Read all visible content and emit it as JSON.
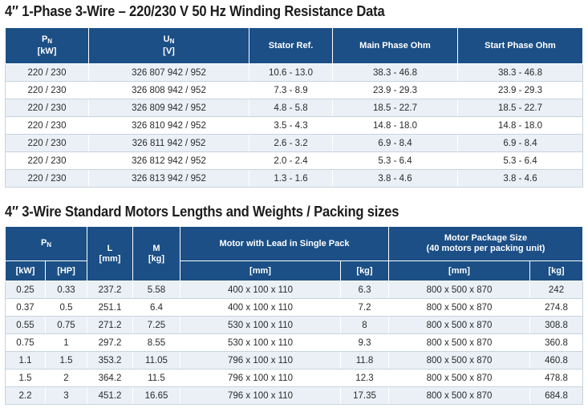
{
  "winding": {
    "title": "4″ 1-Phase 3-Wire – 220/230 V 50 Hz Winding Resistance Data",
    "headers": {
      "pn_main": "P",
      "pn_sub": "N",
      "pn_unit": "[kW]",
      "un_main": "U",
      "un_sub": "N",
      "un_unit": "[V]",
      "stator": "Stator Ref.",
      "main_phase": "Main Phase Ohm",
      "start_phase": "Start Phase Ohm"
    },
    "rows": [
      [
        "220 / 230",
        "326 807 942 / 952",
        "10.6 - 13.0",
        "38.3 - 46.8",
        "38.3 - 46.8"
      ],
      [
        "220 / 230",
        "326 808 942 / 952",
        "7.3 - 8.9",
        "23.9 - 29.3",
        "23.9 - 29.3"
      ],
      [
        "220 / 230",
        "326 809 942 / 952",
        "4.8 - 5.8",
        "18.5 - 22.7",
        "18.5 - 22.7"
      ],
      [
        "220 / 230",
        "326 810 942 / 952",
        "3.5 - 4.3",
        "14.8 - 18.0",
        "14.8 - 18.0"
      ],
      [
        "220 / 230",
        "326 811 942 / 952",
        "2.6 - 3.2",
        "6.9 - 8.4",
        "6.9 - 8.4"
      ],
      [
        "220 / 230",
        "326 812 942 / 952",
        "2.0 - 2.4",
        "5.3 - 6.4",
        "5.3 - 6.4"
      ],
      [
        "220 / 230",
        "326 813 942 / 952",
        "1.3 - 1.6",
        "3.8 - 4.6",
        "3.8 - 4.6"
      ]
    ]
  },
  "motors": {
    "title": "4″ 3-Wire Standard Motors Lengths and Weights / Packing sizes",
    "headers": {
      "pn_main": "P",
      "pn_sub": "N",
      "l_main": "L",
      "l_unit": "[mm]",
      "m_main": "M",
      "m_unit": "[kg]",
      "single_pack": "Motor with Lead in Single Pack",
      "package_line1": "Motor Package Size",
      "package_line2": "(40 motors per packing unit)",
      "kw": "[kW]",
      "hp": "[HP]",
      "mm1": "[mm]",
      "kg1": "[kg]",
      "mm2": "[mm]",
      "kg2": "[kg]"
    },
    "rows": [
      [
        "0.25",
        "0.33",
        "237.2",
        "5.58",
        "400 x 100 x 110",
        "6.3",
        "800 x 500 x 870",
        "242"
      ],
      [
        "0.37",
        "0.5",
        "251.1",
        "6.4",
        "400 x 100 x 110",
        "7.2",
        "800 x 500 x 870",
        "274.8"
      ],
      [
        "0.55",
        "0.75",
        "271.2",
        "7.25",
        "530 x 100 x 110",
        "8",
        "800 x 500 x 870",
        "308.8"
      ],
      [
        "0.75",
        "1",
        "297.2",
        "8.55",
        "530 x 100 x 110",
        "9.3",
        "800 x 500 x 870",
        "360.8"
      ],
      [
        "1.1",
        "1.5",
        "353.2",
        "11.05",
        "796 x 100 x 110",
        "11.8",
        "800 x 500 x 870",
        "460.8"
      ],
      [
        "1.5",
        "2",
        "364.2",
        "11.5",
        "796 x 100 x 110",
        "12.3",
        "800 x 500 x 870",
        "478.8"
      ],
      [
        "2.2",
        "3",
        "451.2",
        "16.65",
        "796 x 100 x 110",
        "17.35",
        "800 x 500 x 870",
        "684.8"
      ]
    ]
  }
}
